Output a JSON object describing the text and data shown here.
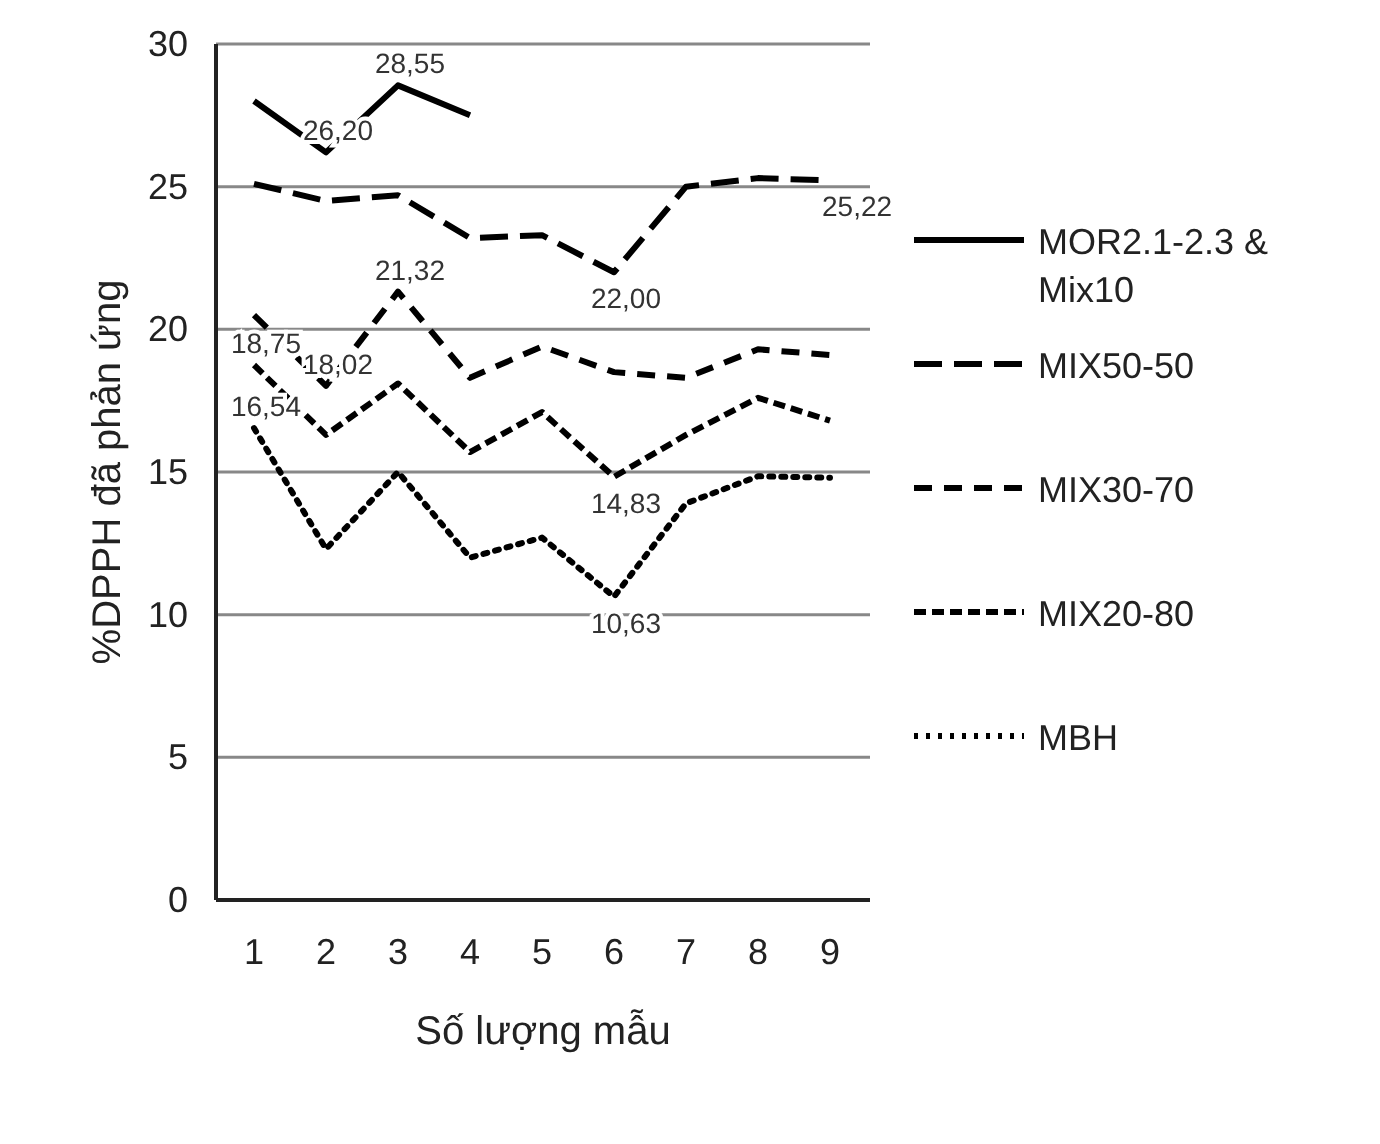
{
  "chart_data": {
    "type": "line",
    "xlabel": "Số lượng mẫu",
    "ylabel": "%DPPH đã phản ứng",
    "categories": [
      "1",
      "2",
      "3",
      "4",
      "5",
      "6",
      "7",
      "8",
      "9"
    ],
    "ylim": [
      0,
      30
    ],
    "yticks": [
      0,
      5,
      10,
      15,
      20,
      25,
      30
    ],
    "grid": "y",
    "legend": "right",
    "marker": "none",
    "series": [
      {
        "name": "MOR2.1-2.3 & Mix10",
        "color": "#000000",
        "line_style": "solid",
        "values": [
          28.0,
          26.2,
          28.55,
          27.5,
          null,
          null,
          null,
          null,
          null
        ],
        "value_labels": [
          null,
          "26,20",
          "28,55",
          null,
          null,
          null,
          null,
          null,
          null
        ]
      },
      {
        "name": "MIX50-50",
        "color": "#000000",
        "line_style": "longdash",
        "values": [
          25.1,
          24.5,
          24.7,
          23.2,
          23.3,
          22.0,
          25.0,
          25.3,
          25.22
        ],
        "value_labels": [
          null,
          null,
          null,
          null,
          null,
          "22,00",
          null,
          null,
          "25,22"
        ]
      },
      {
        "name": "MIX30-70",
        "color": "#000000",
        "line_style": "dashed",
        "values": [
          20.5,
          18.02,
          21.32,
          18.3,
          19.4,
          18.5,
          18.3,
          19.3,
          19.1
        ],
        "value_labels": [
          null,
          "18,02",
          "21,32",
          null,
          null,
          null,
          null,
          null,
          null
        ]
      },
      {
        "name": "MIX20-80",
        "color": "#000000",
        "line_style": "shortdash",
        "values": [
          18.75,
          16.3,
          18.1,
          15.7,
          17.1,
          14.83,
          16.3,
          17.6,
          16.8
        ],
        "value_labels": [
          "18,75",
          null,
          null,
          null,
          null,
          "14,83",
          null,
          null,
          null
        ]
      },
      {
        "name": "MBH",
        "color": "#000000",
        "line_style": "dotted",
        "values": [
          16.54,
          12.3,
          15.0,
          12.0,
          12.7,
          10.63,
          13.9,
          14.85,
          14.8
        ],
        "value_labels": [
          "16,54",
          null,
          null,
          null,
          null,
          "10,63",
          null,
          null,
          null
        ]
      }
    ]
  }
}
